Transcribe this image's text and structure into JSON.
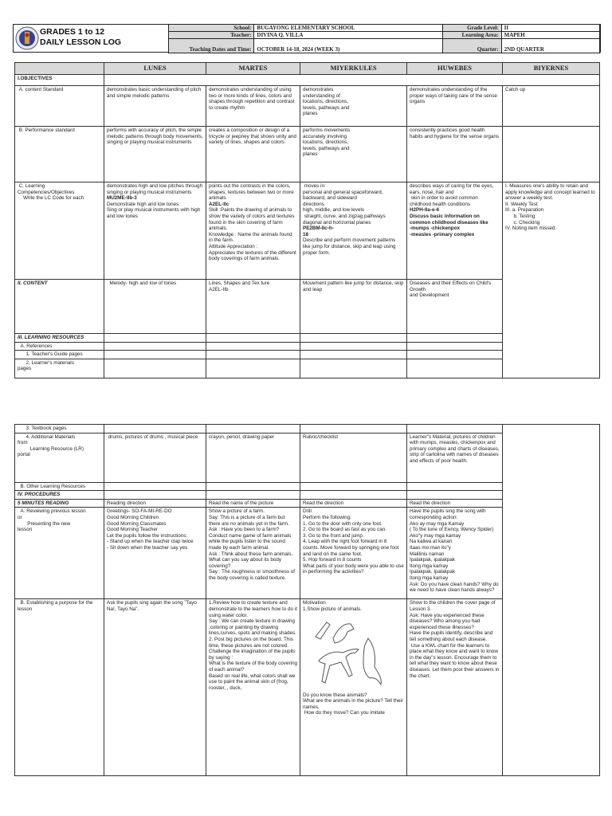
{
  "header": {
    "title_line1": "GRADES 1 to 12",
    "title_line2": "DAILY LESSON LOG",
    "school_label": "School:",
    "school": "BUGAYONG ELEMENTARY SCHOOL",
    "teacher_label": "Teacher:",
    "teacher": "DIVINA Q. VILLA",
    "dates_label": "Teaching Dates and Time:",
    "dates": "OCTOBER 14-18, 2024 (WEEK 3)",
    "grade_label": "Grade Level:",
    "grade": "II",
    "area_label": "Learning Area:",
    "area": "MAPEH",
    "quarter_label": "Quarter:",
    "quarter": "2ND QUARTER"
  },
  "page1": {
    "rows": [
      {
        "cells": [
          [
            ""
          ],
          [
            "LUNES"
          ],
          [
            "MARTES"
          ],
          [
            "MIYERKULES"
          ],
          [
            "HUWEBES"
          ],
          [
            "BIYERNES"
          ]
        ]
      },
      {
        "cells": [
          [
            "I.OBJECTIVES"
          ],
          [
            ""
          ]
        ]
      },
      {
        "cells": [
          [
            " A. content Standard"
          ],
          [
            "demonstrates basic understanding of pitch and simple melodic patterns"
          ],
          [
            "demonstrates understanding of using two or more kinds of lines, colors and shapes through repetition and contrast to create rhythm"
          ],
          [
            "demonstrates",
            "understanding of",
            "locations, directions,",
            "levels, pathways and",
            "planes"
          ],
          [
            "demonstrates understanding of the proper ways of taking care of the sense organs"
          ],
          [
            "Catch up"
          ]
        ]
      },
      {
        "cells": [
          [
            " B. Performance standard"
          ],
          [
            "performs with accuracy of pitch, the simple melodic patterns through body movements, singing or playing musical instruments"
          ],
          [
            "creates a composition or design of a tricycle or jeepney that shows unity and variety of lines, shapes and colors"
          ],
          [
            "performs movements",
            "accurately involving",
            "locations, directions,",
            "levels, pathways and",
            "planes"
          ],
          [
            "consistently practices good health habits and hygiene for the sense organs"
          ],
          [
            ""
          ]
        ]
      },
      {
        "cells": [
          [
            " C. Learning",
            "Competencies/Objectives",
            "    Write the LC Code for each"
          ],
          [
            "demonstrates high and low pitches through singing or playing musical instruments",
            {
              "t": "MU2ME-IIb-3",
              "b": true
            },
            "Demonstrate high and low tones",
            "Sing or play musical instruments with high and low tones"
          ],
          [
            "points out the contrasts in the colors,",
            "shapes, textures between two or more animals",
            {
              "t": "A2EL-IIc",
              "b": true
            },
            "Skill :Paints the drawing of animals to show the variety of colors and textures found in the skin covering of farm animals.",
            "Knowledge : Name the animals found in the farm.",
            "Attitude Appreciation :",
            "Appreciates the textures of the different body coverings of farm animals."
          ],
          [
            " moves in:",
            "personal and general spaceforward, backward, and sideward",
            "directions",
            "high, middle, and low levels",
            " straight, curve, and zigzag pathways diagonal and horizontal planes",
            {
              "t": "PE2BM-IIc-h-",
              "b": true
            },
            {
              "t": "18",
              "b": true
            },
            "Describe and perform movement patterns like jump for distance, skip and leap using proper form."
          ],
          [
            "describes ways of caring for the eyes, ears, nose, hair and",
            " skin in order to avoid common childhood health conditions",
            {
              "t": "H2PH-IIa-e-6",
              "b": true
            },
            {
              "t": "Discuss basic information on common childhood diseases like",
              "b": true
            },
            {
              "t": "-mumps -chickenpox",
              "b": true
            },
            {
              "t": "-measles -primary complex",
              "b": true
            }
          ],
          [
            "I. Measures one's ability to retain and apply knowledge and concept learned to answer a weekly test.",
            "II. Weekly Test",
            "III. a. Preparation",
            "      b. Testing",
            "      c. Checking",
            "IV. Noting item missed."
          ]
        ]
      },
      {
        "cells": [
          [
            "II. CONTENT"
          ],
          [
            "  Melody- high and low of tones"
          ],
          [
            "Lines, Shapes and Tex ture",
            "A2EL-IIb"
          ],
          [
            "Movement pattern like jump for distance, skip",
            "and leap"
          ],
          [
            "Diseases and their Effects on Child's Growth",
            "and Development"
          ]
        ]
      },
      {
        "cells": [
          [
            "III. LEARNING RESOURCES"
          ],
          [
            ""
          ],
          [
            ""
          ],
          [
            ""
          ],
          [
            ""
          ]
        ]
      },
      {
        "cells": [
          [
            "  A. References"
          ],
          [
            ""
          ],
          [
            ""
          ],
          [
            ""
          ],
          [
            ""
          ]
        ]
      },
      {
        "cells": [
          [
            "      1. Teacher's Guide pages"
          ],
          [
            ""
          ],
          [
            ""
          ],
          [
            ""
          ],
          [
            ""
          ]
        ]
      },
      {
        "cells": [
          [
            "      2. Learner's materials",
            "pages"
          ],
          [
            ""
          ],
          [
            ""
          ],
          [
            ""
          ],
          [
            ""
          ]
        ]
      }
    ]
  },
  "page2": {
    "rows": [
      {
        "cells": [
          [
            "      3. Textbook pages"
          ],
          [
            ""
          ],
          [
            ""
          ],
          [
            ""
          ],
          [
            ""
          ],
          [
            ""
          ]
        ]
      },
      {
        "cells": [
          [
            "      4. Additional Materials",
            "from",
            "         Learning Resource (LR)",
            "portal"
          ],
          [
            " drums, pictures of drums , musical piece"
          ],
          [
            "crayon, pencil, drawing paper"
          ],
          [
            "Rubric/checklist"
          ],
          [
            "Learner\"s Material, pictures of children with mumps, measles, chickenpox and primary complex and charts of diseases, strip of cartolina with names of diseases and effects of poor health."
          ]
        ]
      },
      {
        "cells": [
          [
            "  B. Other Learning Resources"
          ],
          [
            ""
          ],
          [
            ""
          ],
          [
            ""
          ],
          [
            ""
          ]
        ]
      },
      {
        "cells": [
          [
            "IV. PROCEDURES"
          ],
          [
            ""
          ],
          [
            ""
          ],
          [
            ""
          ],
          [
            ""
          ]
        ]
      },
      {
        "cells": [
          [
            "5 MINUTES READING"
          ],
          [
            "Reading direction"
          ],
          [
            "Read the name of the picture"
          ],
          [
            "Read the direction"
          ],
          [
            "Read the direction"
          ]
        ]
      },
      {
        "cells": [
          [
            "  A. Reviewing previous lesson",
            "or",
            "       Presenting the new",
            "lesson"
          ],
          [
            "Greetings- SO-FA-MI-RE-DO",
            "Good Morning Children",
            "Good Morning Classmates",
            "Good Morning Teacher",
            "Let the pupils follow the instructions:",
            "- Stand up when the teacher clap twice",
            "- Sit down when the teacher say yes"
          ],
          [
            "Show a picture of a farm.",
            "Say: This is a picture of a farm but there are no animals yet in the farm.",
            "Ask : Have you been to a farm?",
            "Conduct name game of farm animals while the pupils listen to the sound made by each farm animal.",
            "Ask : Think about these farm animals. What can you say about its body covering?",
            "Say : The roughness or smoothness of the body covering is called texture."
          ],
          [
            "Drill",
            "Perform the following:",
            "1. Go to the door with only one foot.",
            "2. Go to the board as fast as you can.",
            "3. Go to the front and jump.",
            "4. Leap with the right foot forward in 8 counts. Move forward by springing one foot and land on the same foot.",
            "5. Hop forward in 8 counts",
            "What parts of your body were you able to use in performing the activities?"
          ],
          [
            "Have the pupils sing the song with corresponding action:",
            "Ako ay may mga Kamay",
            "( To the tune of Eency, Wency Spider)",
            "Ako\"y may mga kamay",
            "Na kaliwa at kanan",
            "Itaas mo man ito\"y",
            "Malilinis naman",
            "Ipalakpak, ipalakpak",
            "Itong mga kamay",
            "Ipalakpak, ipalakpak",
            "Itong mga kamay",
            "Ask: Do you have clean hands? Why do we need to have clean hands always?"
          ]
        ]
      },
      {
        "cells": [
          [
            "  B. Establishing a purpose for the lesson"
          ],
          [
            "Ask the pupils sing again the song \"Tayo Na!, Tayo Na\"."
          ],
          [
            "1.Review how to create texture and demonstrate to the learners how to do it using water color.",
            "Say : We can create texture in drawing ,coloring or painting by drawing lines,curves, spots and making shades.",
            "2. Post big pictures on the board. This time, these pictures are not colored. Challenge the imagination of the pupils by saying :",
            "What is the texture of the body covering of each animal?",
            "Based on real life, what colors shall we use to paint the animal skin of (frog, rooster, , duck,"
          ],
          [
            "Motivation",
            "1.Show picture of animals.",
            {
              "img": "animals-sketch"
            },
            "Do you know these animals?",
            "What are the animals in the picture? Tell their names.",
            " How do they move? Can you imitate"
          ],
          [
            "Show to the children the cover page of Lesson 3.",
            "Ask: Have you experienced these diseases? Who among you had experienced these illnesses?",
            "Have the pupils identify, describe and tell something about each disease.",
            " Use a KWL chart for the learners to place what they know and want to know in the day\"s lesson. Encourage them to tell what they want to know about these diseases. Let them post their answers in the chart."
          ]
        ]
      }
    ]
  },
  "colors": {
    "header_fill": "#d9d9d9",
    "border": "#333333"
  }
}
